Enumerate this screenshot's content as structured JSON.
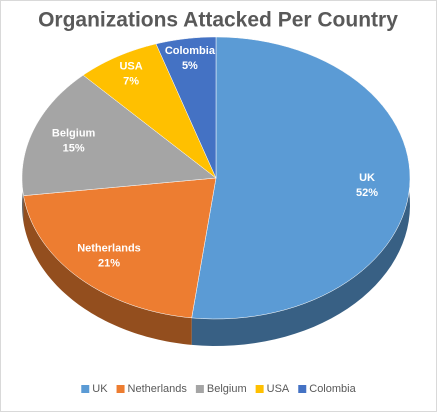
{
  "chart_data": {
    "type": "pie3d",
    "title": "Organizations Attacked Per Country",
    "categories": [
      "UK",
      "Netherlands",
      "Belgium",
      "USA",
      "Colombia"
    ],
    "values": [
      52,
      21,
      15,
      7,
      5
    ],
    "value_labels": [
      "52%",
      "21%",
      "15%",
      "7%",
      "5%"
    ],
    "colors": [
      "#5b9bd5",
      "#ed7d31",
      "#a5a5a5",
      "#ffc000",
      "#4472c4"
    ],
    "legend": "bottom"
  }
}
